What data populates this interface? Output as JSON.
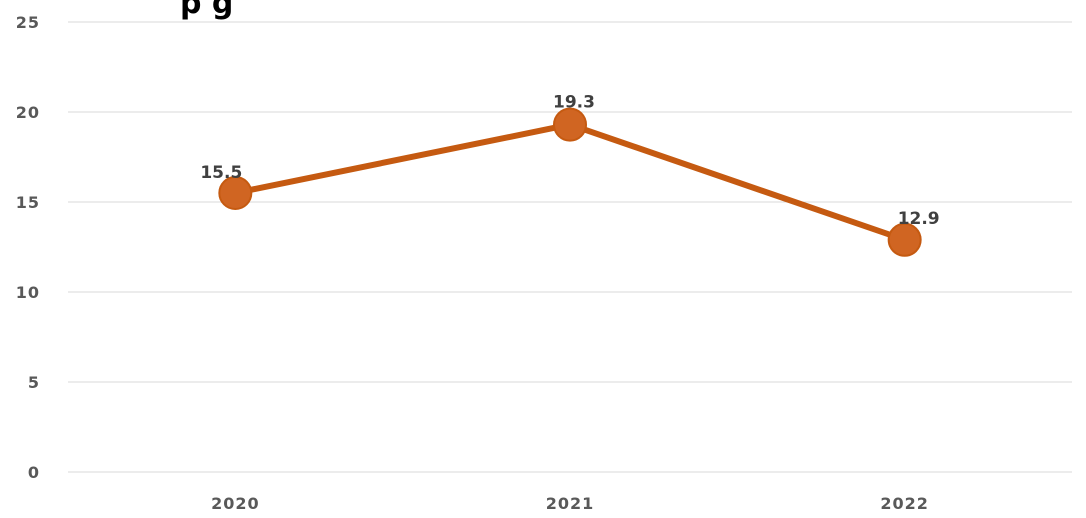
{
  "chart_data": {
    "type": "line",
    "title": "",
    "title_visible_fragment": "p      g",
    "xlabel": "",
    "ylabel": "",
    "categories": [
      "2020",
      "2021",
      "2022"
    ],
    "series": [
      {
        "values": [
          15.5,
          19.3,
          12.9
        ],
        "data_labels": [
          "15.5",
          "19.3",
          "12.9"
        ],
        "color": "#C55A11"
      }
    ],
    "ylim": [
      0,
      25
    ],
    "yticks": [
      "0",
      "5",
      "10",
      "15",
      "20",
      "25"
    ],
    "grid": true,
    "legend": "none",
    "colors": {
      "line": "#C55A11",
      "marker": "#D06522",
      "grid": "#D9D9D9",
      "tick_text": "#595959",
      "label_text": "#404040"
    }
  }
}
